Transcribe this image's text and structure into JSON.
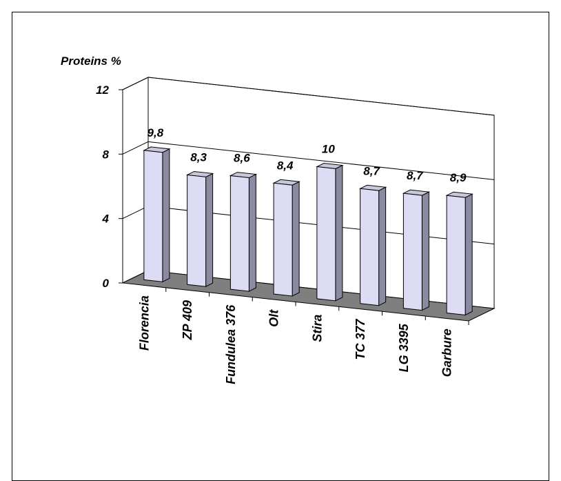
{
  "chart_data": {
    "type": "bar",
    "ylabel": "Proteins %",
    "categories": [
      "Florencia",
      "ZP 409",
      "Fundulea 376",
      "Olt",
      "Stira",
      "TC 377",
      "LG 3395",
      "Garbure"
    ],
    "values": [
      9.8,
      8.3,
      8.6,
      8.4,
      10,
      8.7,
      8.7,
      8.9
    ],
    "data_labels": [
      "9,8",
      "8,3",
      "8,6",
      "8,4",
      "10",
      "8,7",
      "8,7",
      "8,9"
    ],
    "yticks": [
      "0",
      "4",
      "8",
      "12"
    ],
    "ylim": [
      0,
      12
    ],
    "grid": true,
    "legend": "none",
    "colors": {
      "bar_face": "#dcdcf4",
      "bar_side": "#8a8aa0",
      "bar_top": "#c8c8dc",
      "floor": "#7f7f7f"
    }
  }
}
